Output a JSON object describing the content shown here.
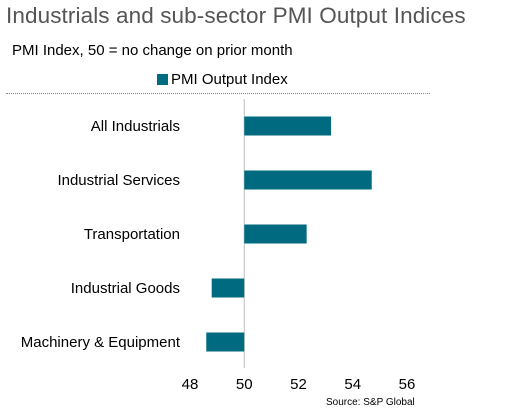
{
  "title": "Industrials and sub-sector PMI Output Indices",
  "subtitle": "PMI Index, 50 = no change on prior month",
  "source": "Source: S&P Global",
  "colors": {
    "bar": "#006b80",
    "title": "#555555"
  },
  "chart_data": {
    "type": "bar",
    "orientation": "horizontal",
    "categories": [
      "All Industrials",
      "Industrial Services",
      "Transportation",
      "Industrial Goods",
      "Machinery & Equipment"
    ],
    "series": [
      {
        "name": "PMI Output Index",
        "values": [
          53.2,
          54.7,
          52.3,
          48.8,
          48.6
        ]
      }
    ],
    "baseline": 50,
    "xlim": [
      48,
      56
    ],
    "xticks": [
      48,
      50,
      52,
      54,
      56
    ],
    "legend": "top-center",
    "grid": false
  }
}
